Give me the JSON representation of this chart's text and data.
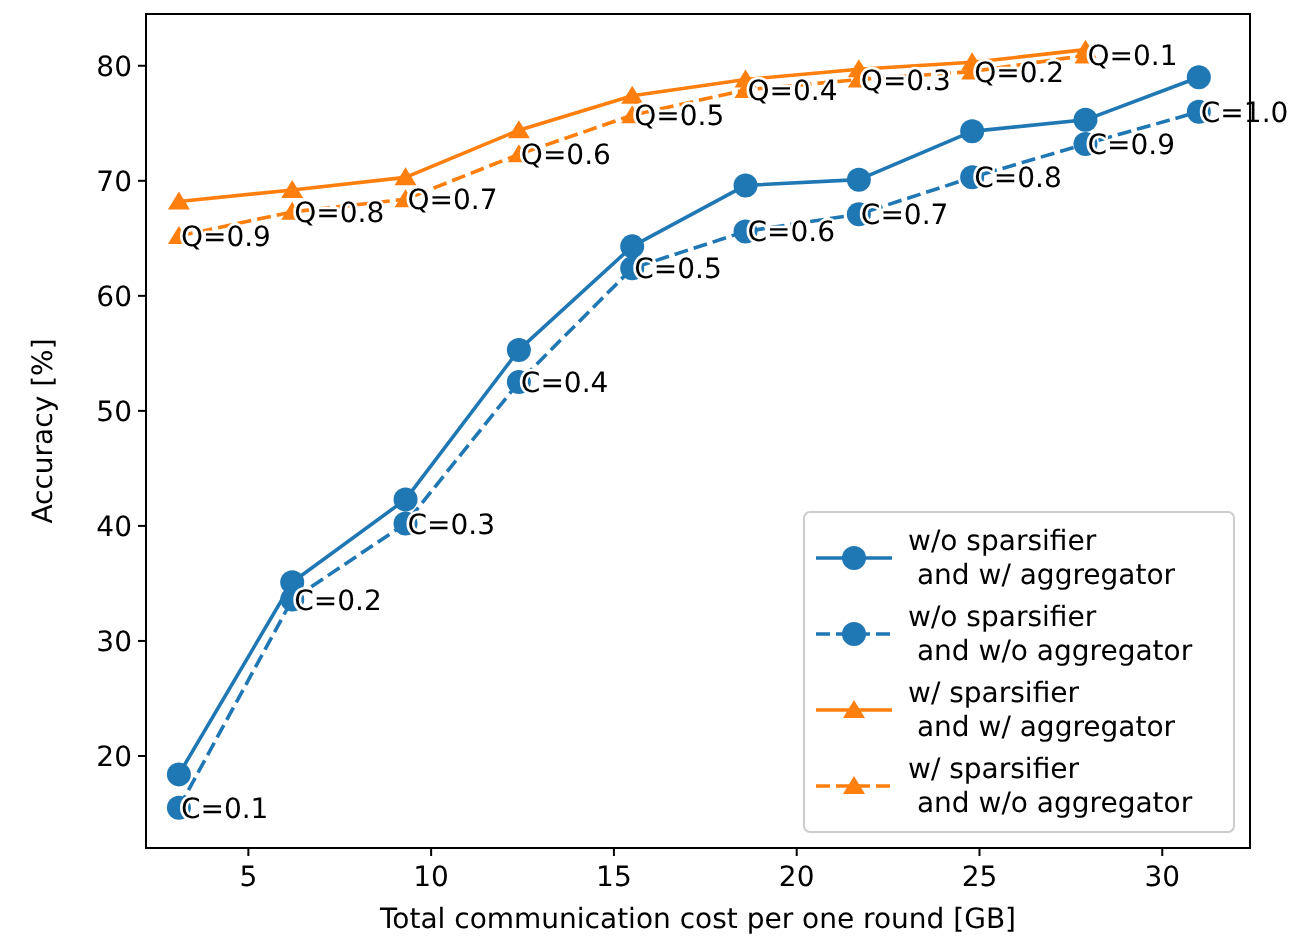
{
  "chart_data": {
    "type": "line",
    "xlabel": "Total communication cost per one round [GB]",
    "ylabel": "Accuracy [%]",
    "x": [
      3.1,
      6.2,
      9.3,
      12.4,
      15.5,
      18.6,
      21.7,
      24.8,
      27.9,
      31.0
    ],
    "series": [
      {
        "name": "w/o sparsifier\n and w/ aggregator",
        "color": "#1f77b4",
        "marker": "circle",
        "line_style": "solid",
        "values": [
          18.4,
          35.1,
          42.3,
          55.3,
          64.3,
          69.6,
          70.1,
          74.3,
          75.3,
          79.0
        ]
      },
      {
        "name": "w/o sparsifier\n and w/o aggregator",
        "color": "#1f77b4",
        "marker": "circle",
        "line_style": "dashed",
        "values": [
          15.5,
          33.6,
          40.2,
          52.5,
          62.4,
          65.6,
          67.1,
          70.3,
          73.2,
          76.0
        ]
      },
      {
        "name": "w/ sparsifier\n and w/ aggregator",
        "color": "#ff7f0e",
        "marker": "triangle",
        "line_style": "solid",
        "x": [
          3.1,
          6.2,
          9.3,
          12.4,
          15.5,
          18.6,
          21.7,
          24.8,
          27.9
        ],
        "values": [
          68.2,
          69.2,
          70.3,
          74.4,
          77.4,
          78.8,
          79.7,
          80.3,
          81.4
        ]
      },
      {
        "name": "w/ sparsifier\n and w/o aggregator",
        "color": "#ff7f0e",
        "marker": "triangle",
        "line_style": "dashed",
        "x": [
          3.1,
          6.2,
          9.3,
          12.4,
          15.5,
          18.6,
          21.7,
          24.8,
          27.9
        ],
        "values": [
          65.2,
          67.3,
          68.4,
          72.3,
          75.7,
          77.9,
          78.8,
          79.5,
          80.9
        ]
      }
    ],
    "annotations": [
      {
        "text": "C=0.1",
        "x": 3.1,
        "y": 15.5
      },
      {
        "text": "C=0.2",
        "x": 6.2,
        "y": 33.6
      },
      {
        "text": "C=0.3",
        "x": 9.3,
        "y": 40.2
      },
      {
        "text": "C=0.4",
        "x": 12.4,
        "y": 52.5
      },
      {
        "text": "C=0.5",
        "x": 15.5,
        "y": 62.4
      },
      {
        "text": "C=0.6",
        "x": 18.6,
        "y": 65.6
      },
      {
        "text": "C=0.7",
        "x": 21.7,
        "y": 67.1
      },
      {
        "text": "C=0.8",
        "x": 24.8,
        "y": 70.3
      },
      {
        "text": "C=0.9",
        "x": 27.9,
        "y": 73.2
      },
      {
        "text": "C=1.0",
        "x": 31.0,
        "y": 76.0
      },
      {
        "text": "Q=0.9",
        "x": 3.1,
        "y": 65.2
      },
      {
        "text": "Q=0.8",
        "x": 6.2,
        "y": 67.3
      },
      {
        "text": "Q=0.7",
        "x": 9.3,
        "y": 68.4
      },
      {
        "text": "Q=0.6",
        "x": 12.4,
        "y": 72.3
      },
      {
        "text": "Q=0.5",
        "x": 15.5,
        "y": 75.7
      },
      {
        "text": "Q=0.4",
        "x": 18.6,
        "y": 77.9
      },
      {
        "text": "Q=0.3",
        "x": 21.7,
        "y": 78.8
      },
      {
        "text": "Q=0.2",
        "x": 24.8,
        "y": 79.5
      },
      {
        "text": "Q=0.1",
        "x": 27.9,
        "y": 80.9
      }
    ],
    "xlim": [
      2.2,
      32.4
    ],
    "xticks": [
      5,
      10,
      15,
      20,
      25,
      30
    ],
    "ylim": [
      12.0,
      84.5
    ],
    "yticks": [
      20,
      30,
      40,
      50,
      60,
      70,
      80
    ],
    "grid": false,
    "legend": "bottom right"
  }
}
